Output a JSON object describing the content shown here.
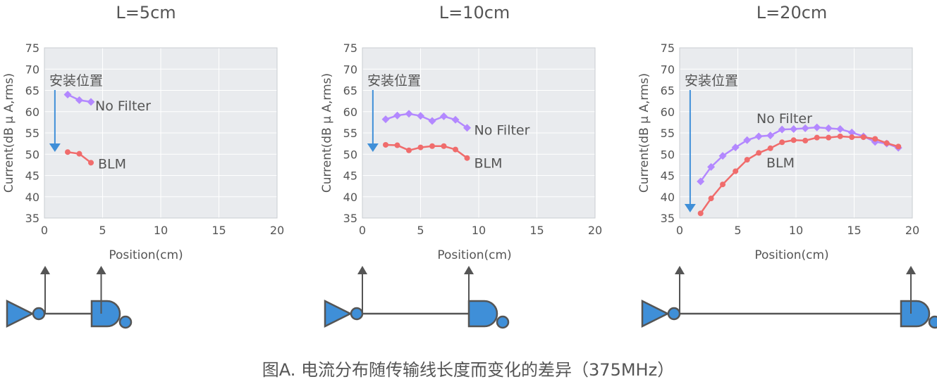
{
  "caption": "图A. 电流分布随传输线长度而变化的差异（375MHz）",
  "colors": {
    "no_filter": "#b388ff",
    "blm": "#f06c6c",
    "arrow": "#3f8fd8",
    "plot_bg": "#e9ebee",
    "grid": "#ffffff"
  },
  "chart_data": [
    {
      "type": "line",
      "title": "L=5cm",
      "xlabel": "Position(cm)",
      "ylabel": "Current(dB μ A,rms)",
      "xlim": [
        0,
        20
      ],
      "ylim": [
        35,
        75
      ],
      "xticks": [
        "0",
        "5",
        "10",
        "15",
        "20"
      ],
      "yticks": [
        "35",
        "40",
        "45",
        "50",
        "55",
        "60",
        "65",
        "70",
        "75"
      ],
      "annotation": "安装位置",
      "series": [
        {
          "name": "No Filter",
          "x": [
            2,
            3,
            4
          ],
          "y": [
            64,
            62.7,
            62.3
          ]
        },
        {
          "name": "BLM",
          "x": [
            2,
            3,
            4
          ],
          "y": [
            50.5,
            50.1,
            48
          ]
        }
      ]
    },
    {
      "type": "line",
      "title": "L=10cm",
      "xlabel": "Position(cm)",
      "ylabel": "Current(dB μ A,rms)",
      "xlim": [
        0,
        20
      ],
      "ylim": [
        35,
        75
      ],
      "xticks": [
        "0",
        "5",
        "10",
        "15",
        "20"
      ],
      "yticks": [
        "35",
        "40",
        "45",
        "50",
        "55",
        "60",
        "65",
        "70",
        "75"
      ],
      "annotation": "安装位置",
      "series": [
        {
          "name": "No Filter",
          "x": [
            2,
            3,
            4,
            5,
            6,
            7,
            8,
            9
          ],
          "y": [
            58.2,
            59.1,
            59.5,
            59,
            57.8,
            58.9,
            58.1,
            56.2
          ]
        },
        {
          "name": "BLM",
          "x": [
            2,
            3,
            4,
            5,
            6,
            7,
            8,
            9
          ],
          "y": [
            52.2,
            52.1,
            50.9,
            51.6,
            51.9,
            51.9,
            51.1,
            49.1
          ]
        }
      ]
    },
    {
      "type": "line",
      "title": "L=20cm",
      "xlabel": "Position(cm)",
      "ylabel": "Current(dB μ A,rms)",
      "xlim": [
        0,
        20
      ],
      "ylim": [
        35,
        75
      ],
      "xticks": [
        "0",
        "5",
        "10",
        "15",
        "20"
      ],
      "yticks": [
        "35",
        "40",
        "45",
        "50",
        "55",
        "60",
        "65",
        "70",
        "75"
      ],
      "annotation": "安装位置",
      "series": [
        {
          "name": "No Filter",
          "x": [
            1.8,
            2.7,
            3.7,
            4.8,
            5.8,
            6.8,
            7.8,
            8.8,
            9.8,
            10.8,
            11.8,
            12.8,
            13.8,
            14.8,
            15.8,
            16.8,
            17.8,
            18.8
          ],
          "y": [
            43.6,
            47,
            49.6,
            51.6,
            53.3,
            54.2,
            54.4,
            55.8,
            55.9,
            56.1,
            56.3,
            56.1,
            55.9,
            55.1,
            54.2,
            52.9,
            52.5,
            51.5
          ]
        },
        {
          "name": "BLM",
          "x": [
            1.8,
            2.7,
            3.7,
            4.8,
            5.8,
            6.8,
            7.8,
            8.8,
            9.8,
            10.8,
            11.8,
            12.8,
            13.8,
            14.8,
            15.8,
            16.8,
            17.8,
            18.8
          ],
          "y": [
            36.1,
            39.6,
            42.9,
            46,
            48.7,
            50.3,
            51.4,
            52.8,
            53.3,
            53.2,
            53.9,
            53.9,
            54.2,
            54,
            54,
            53.6,
            52.6,
            51.8
          ]
        }
      ]
    }
  ]
}
